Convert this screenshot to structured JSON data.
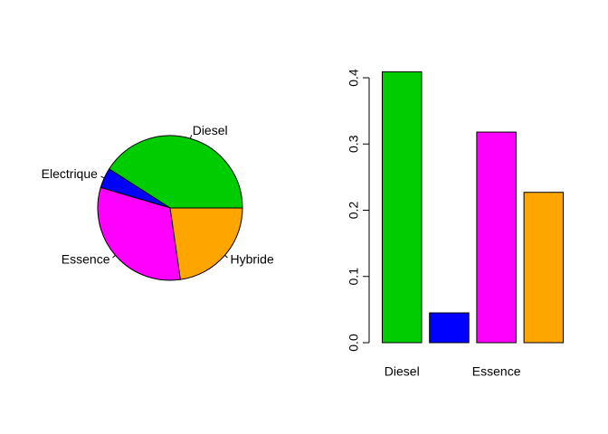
{
  "chart_data": [
    {
      "type": "pie",
      "title": "",
      "categories": [
        "Diesel",
        "Electrique",
        "Essence",
        "Hybride"
      ],
      "values": [
        0.409,
        0.045,
        0.318,
        0.227
      ],
      "colors": [
        "#00cd00",
        "#0000ff",
        "#ff00ff",
        "#ffa500"
      ],
      "start_angle_deg": 0,
      "direction": "counterclockwise"
    },
    {
      "type": "bar",
      "title": "",
      "xlabel": "",
      "ylabel": "",
      "categories": [
        "Diesel",
        "Electrique",
        "Essence",
        "Hybride"
      ],
      "values": [
        0.409,
        0.045,
        0.318,
        0.227
      ],
      "colors": [
        "#00cd00",
        "#0000ff",
        "#ff00ff",
        "#ffa500"
      ],
      "ylim": [
        0,
        0.4
      ],
      "yticks": [
        "0.0",
        "0.1",
        "0.2",
        "0.3",
        "0.4"
      ],
      "xtick_labels_shown": [
        "Diesel",
        "",
        "Essence",
        ""
      ]
    }
  ]
}
